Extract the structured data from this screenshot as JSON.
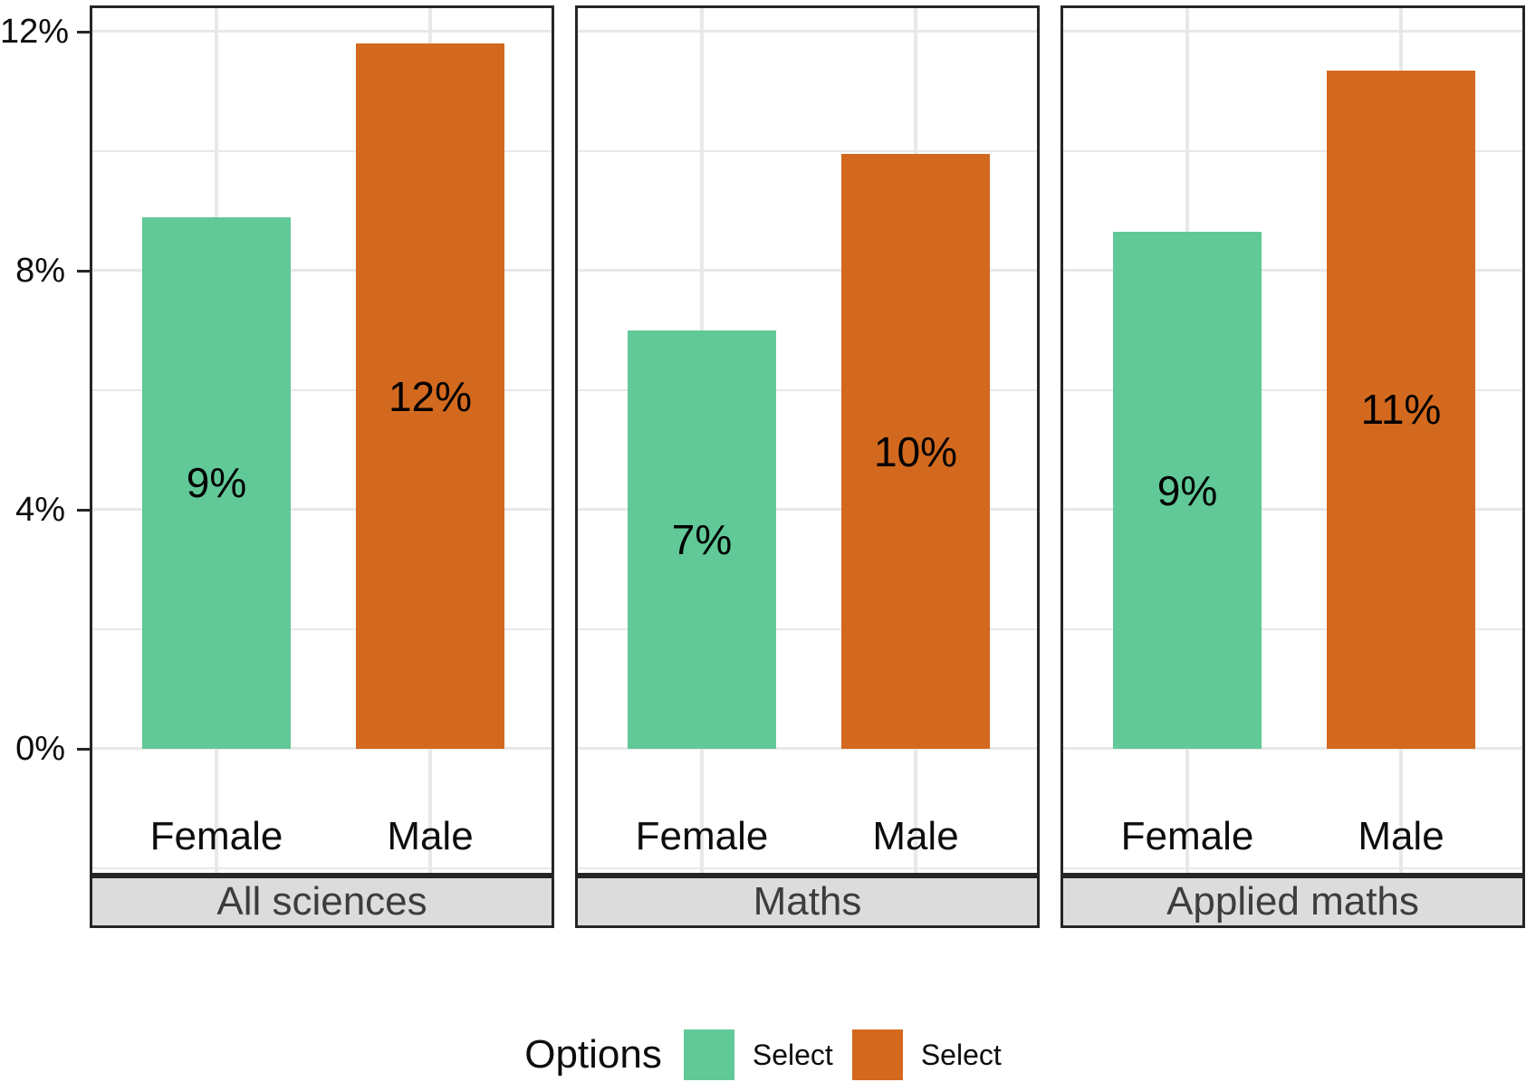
{
  "chart_data": {
    "type": "bar",
    "title": "",
    "xlabel": "",
    "ylabel": "",
    "categories": [
      "Female",
      "Male"
    ],
    "facets": [
      {
        "label": "All sciences",
        "values": [
          8.9,
          11.8
        ],
        "bar_labels": [
          "9%",
          "12%"
        ]
      },
      {
        "label": "Maths",
        "values": [
          7.0,
          9.95
        ],
        "bar_labels": [
          "7%",
          "10%"
        ]
      },
      {
        "label": "Applied maths",
        "values": [
          8.65,
          11.35
        ],
        "bar_labels": [
          "9%",
          "11%"
        ]
      }
    ],
    "y_tick_labels": [
      "0%",
      "4%",
      "8%",
      "12%"
    ],
    "y_major_ticks": [
      0,
      4,
      8,
      12
    ],
    "y_minor_gridlines": [
      -2,
      2,
      6,
      10
    ],
    "ylim": [
      -2.15,
      12.42
    ],
    "grid": "on",
    "legend": {
      "title": "Options",
      "position": "bottom",
      "entries": [
        {
          "label": "Select",
          "color": "#61c997"
        },
        {
          "label": "Select",
          "color": "#d2691e"
        }
      ]
    },
    "colors": {
      "female_bar": "#61c997",
      "male_bar": "#d2691e",
      "gridline": "#e8e8e8",
      "panel_border": "#262626",
      "strip_background": "#dcdcdc",
      "strip_text": "#3d3d3d",
      "axis_text": "#0d0d0d"
    }
  }
}
